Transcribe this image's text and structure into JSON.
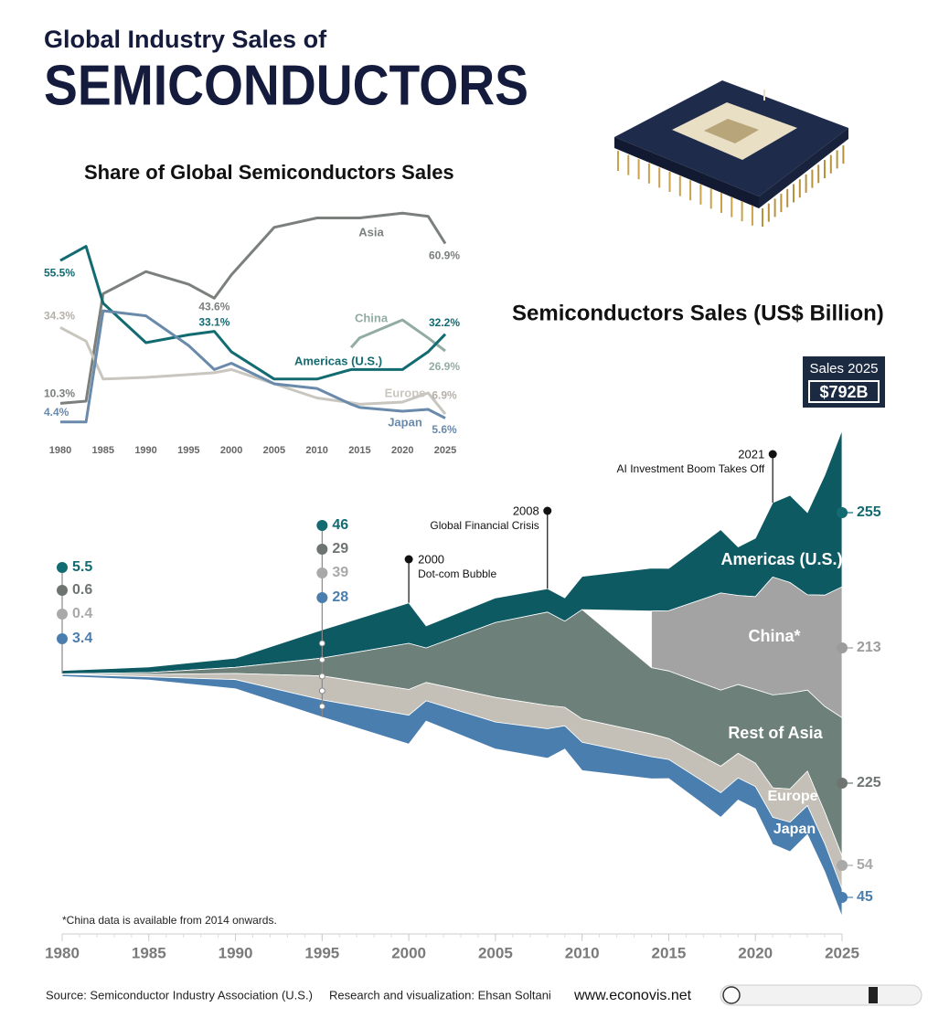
{
  "header": {
    "kicker": "Global Industry Sales of",
    "title": "SEMICONDUCTORS"
  },
  "chart_data": [
    {
      "type": "line",
      "title": "Share of Global Semiconductors Sales",
      "x": [
        1980,
        1983,
        1985,
        1990,
        1995,
        1998,
        2000,
        2005,
        2010,
        2014,
        2015,
        2020,
        2023,
        2025
      ],
      "xlim": [
        1980,
        2025
      ],
      "xticks": [
        1980,
        1985,
        1990,
        1995,
        2000,
        2005,
        2010,
        2015,
        2020,
        2025
      ],
      "ylim": [
        0,
        70
      ],
      "series": [
        {
          "name": "Asia",
          "color": "#7b807d",
          "values": [
            10.3,
            11,
            45,
            52,
            48,
            43.6,
            51,
            66,
            69,
            69,
            69,
            70.5,
            69.5,
            60.9
          ],
          "value_labels": [
            "10.3%",
            null,
            null,
            null,
            null,
            "43.6%",
            null,
            null,
            null,
            null,
            null,
            null,
            null,
            "60.9%"
          ]
        },
        {
          "name": "China",
          "color": "#93aca3",
          "values": [
            null,
            null,
            null,
            null,
            null,
            null,
            null,
            null,
            null,
            28,
            31,
            36.7,
            31,
            26.9
          ],
          "value_labels": [
            null,
            null,
            null,
            null,
            null,
            null,
            null,
            null,
            null,
            null,
            null,
            null,
            null,
            "26.9%"
          ]
        },
        {
          "name": "Americas (U.S.)",
          "color": "#136b72",
          "values": [
            55.5,
            60,
            42,
            29.5,
            32,
            33.1,
            26.6,
            18,
            18,
            21,
            21,
            21,
            26.6,
            32.2
          ],
          "value_labels": [
            "55.5%",
            null,
            null,
            null,
            null,
            "33.1%",
            null,
            null,
            null,
            null,
            null,
            null,
            null,
            "32.2%"
          ]
        },
        {
          "name": "Europe",
          "color": "#c9c6bf",
          "values": [
            34.3,
            30,
            18,
            18.5,
            19.4,
            20,
            21,
            16.5,
            12,
            10.5,
            10,
            10.7,
            13.6,
            6.9
          ],
          "value_labels": [
            "34.3%",
            null,
            null,
            null,
            null,
            null,
            null,
            null,
            null,
            null,
            null,
            null,
            null,
            "6.9%"
          ]
        },
        {
          "name": "Japan",
          "color": "#6a8aab",
          "values": [
            4.4,
            4.4,
            39.6,
            38,
            28.6,
            21,
            23,
            16.5,
            15,
            10,
            9,
            7.8,
            8.4,
            5.6
          ],
          "value_labels": [
            "4.4%",
            null,
            null,
            null,
            null,
            null,
            null,
            null,
            null,
            null,
            null,
            null,
            null,
            "5.6%"
          ]
        }
      ]
    },
    {
      "type": "stream",
      "title": "Semiconductors Sales (US$ Billion)",
      "x": [
        1980,
        1985,
        1990,
        1995,
        2000,
        2001,
        2005,
        2008,
        2009,
        2010,
        2014,
        2015,
        2018,
        2019,
        2020,
        2021,
        2022,
        2023,
        2024,
        2025
      ],
      "xlim": [
        1980,
        2025
      ],
      "xticks": [
        1980,
        1985,
        1990,
        1995,
        2000,
        2005,
        2010,
        2015,
        2020,
        2025
      ],
      "ylim": [
        -400,
        400
      ],
      "series": [
        {
          "name": "Americas (U.S.)",
          "color": "#0e5a63",
          "values": [
            5.5,
            9,
            15,
            46,
            66,
            36,
            40,
            38,
            38,
            54,
            70,
            69,
            103,
            79,
            95,
            121,
            142,
            134,
            195,
            255
          ]
        },
        {
          "name": "China*",
          "color": "#a3a3a3",
          "values": [
            null,
            null,
            null,
            null,
            null,
            null,
            null,
            null,
            null,
            null,
            92,
            98,
            158,
            145,
            151,
            192,
            180,
            155,
            181,
            213
          ]
        },
        {
          "name": "Rest of Asia",
          "color": "#6d8079",
          "values": [
            0.6,
            3,
            10,
            29,
            75,
            56,
            122,
            152,
            140,
            178,
            108,
            110,
            124,
            112,
            120,
            151,
            156,
            132,
            172,
            225
          ]
        },
        {
          "name": "Europe",
          "color": "#c4c0b8",
          "values": [
            0.4,
            4,
            10,
            39,
            42,
            30,
            40,
            38,
            30,
            38,
            37,
            34,
            43,
            40,
            38,
            48,
            54,
            56,
            51,
            54
          ]
        },
        {
          "name": "Japan",
          "color": "#4a7eae",
          "values": [
            3.4,
            5,
            15,
            28,
            47,
            33,
            44,
            48,
            38,
            46,
            36,
            31,
            40,
            36,
            36,
            44,
            48,
            47,
            46,
            45
          ]
        }
      ],
      "annotations": [
        {
          "year": 2000,
          "text": "Dot-com Bubble"
        },
        {
          "year": 2008,
          "text": "Global Financial Crisis"
        },
        {
          "year": 2021,
          "text": "AI Investment Boom Takes Off"
        }
      ],
      "callout": {
        "label": "Sales 2025",
        "text": "$792B"
      },
      "note": "*China data is available from 2014 onwards."
    }
  ],
  "footer": {
    "source": "Source: Semiconductor Industry Association (U.S.)",
    "credit": "Research and visualization: Ehsan Soltani",
    "website": "www.econovis.net"
  }
}
